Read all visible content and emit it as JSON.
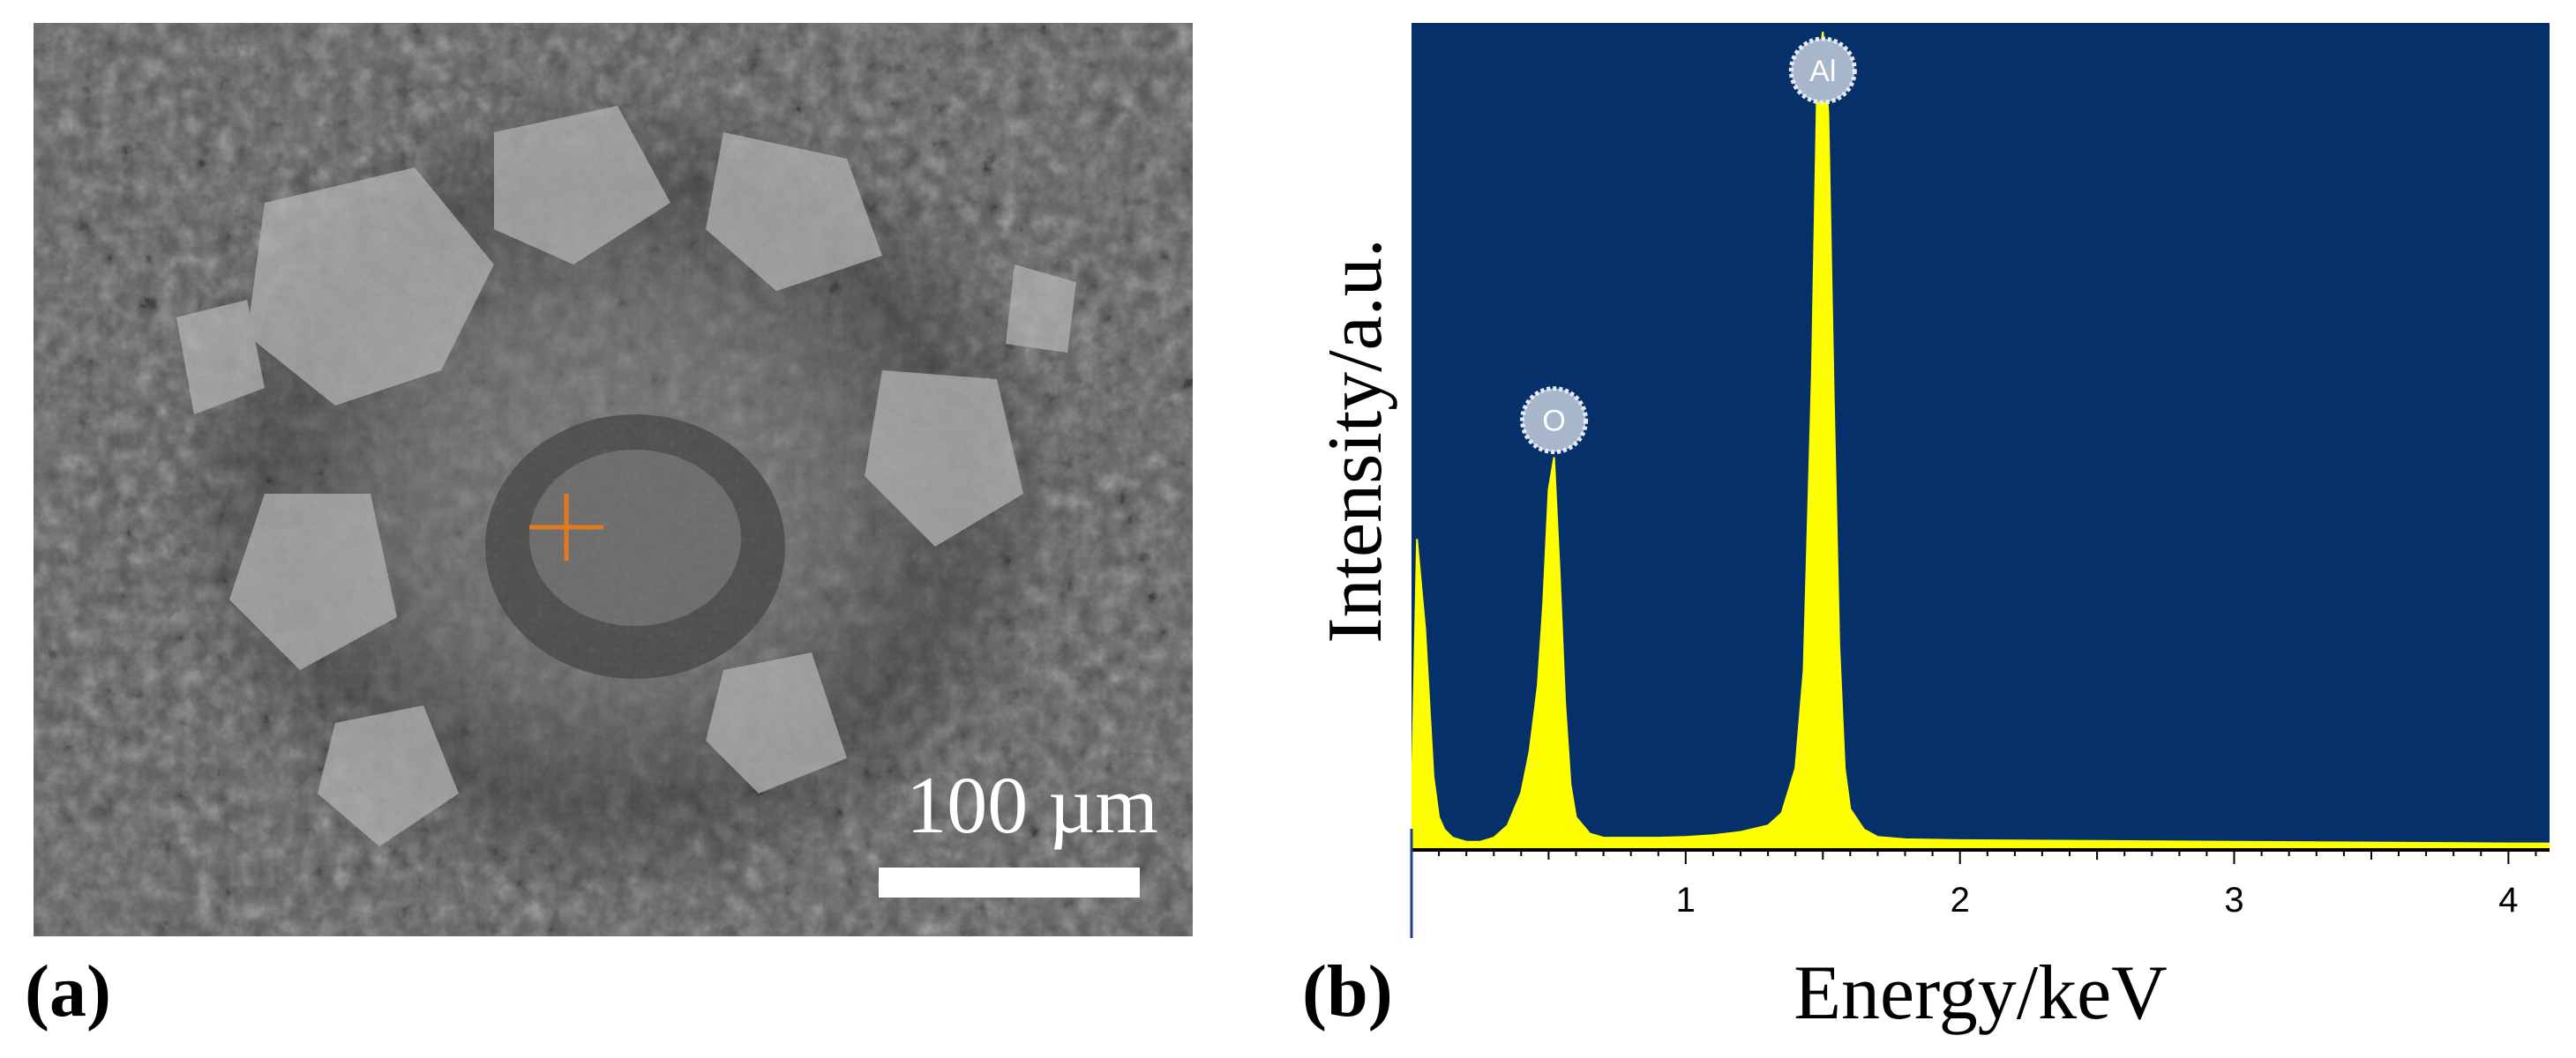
{
  "panels": {
    "a": {
      "label": "(a)",
      "scale_bar_text": "100 µm"
    },
    "b": {
      "label": "(b)"
    }
  },
  "colors": {
    "plot_background": "#06306a",
    "spectrum": "#ffff00",
    "marker": "#e07a1e",
    "sem_base": "#5a5a5a"
  },
  "icons": {
    "sem_marker": "crosshair-icon",
    "peak_label": "circle-badge-icon"
  },
  "chart_data": {
    "type": "line",
    "title": "",
    "xlabel": "Energy/keV",
    "ylabel": "Intensity/a.u.",
    "xlim": [
      0,
      4.15
    ],
    "ylim": [
      0,
      100
    ],
    "xticks": [
      1,
      2,
      3,
      4
    ],
    "y_tick_labels": "none",
    "grid": false,
    "fill_under_curve": true,
    "series": [
      {
        "x": [
          0.0,
          0.02,
          0.05,
          0.08,
          0.1,
          0.12,
          0.15,
          0.2,
          0.25,
          0.3,
          0.35,
          0.4,
          0.43,
          0.46,
          0.48,
          0.5,
          0.52,
          0.54,
          0.56,
          0.58,
          0.6,
          0.65,
          0.7,
          0.8,
          0.9,
          1.0,
          1.1,
          1.2,
          1.3,
          1.35,
          1.4,
          1.43,
          1.46,
          1.48,
          1.5,
          1.52,
          1.54,
          1.56,
          1.58,
          1.6,
          1.65,
          1.7,
          1.8,
          2.0,
          2.5,
          3.0,
          3.5,
          4.0,
          4.15
        ],
        "y": [
          5,
          38,
          27,
          9,
          4,
          2.5,
          1.5,
          1,
          1,
          1.5,
          3,
          7,
          12,
          20,
          30,
          44,
          48,
          34,
          18,
          8,
          4,
          2,
          1.5,
          1.5,
          1.5,
          1.6,
          1.8,
          2.2,
          3,
          4.5,
          10,
          22,
          58,
          95,
          100,
          90,
          55,
          25,
          10,
          5,
          2.5,
          1.6,
          1.3,
          1.2,
          1.1,
          1.0,
          0.9,
          0.8,
          0.8
        ]
      }
    ],
    "annotations": [
      {
        "text": "O",
        "x": 0.52
      },
      {
        "text": "Al",
        "x": 1.5
      }
    ]
  }
}
